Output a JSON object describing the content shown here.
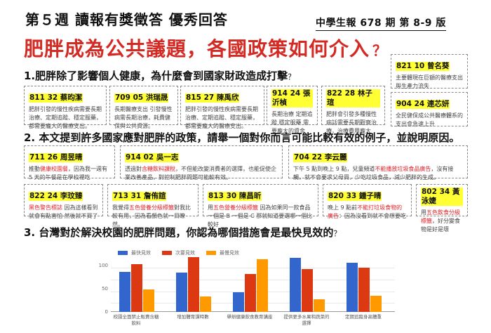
{
  "header": {
    "week_title": "第５週  讀報有獎徵答  優秀回答",
    "issue_info": "中學生報 678 期  第 8-9 版",
    "main_title": "肥胖成為公共議題，各國政策如何介入",
    "main_title_mark": "？"
  },
  "questions": {
    "q1": "1.肥胖除了影響個人健康，為什麼會到國家財政造成打擊",
    "q2": "2. 本文提到許多國家應對肥胖的政策，請舉一個對你而言可能比較有效的例子，並說明原因。",
    "q3": "3. 台灣對於解決校園的肥胖問題，你認為哪個措施會是最快見效的",
    "mark": "？"
  },
  "section1_answers": [
    {
      "name": "811  32  蔡昀潔",
      "text": "肥胖引發的慢性疾病需要長期治療、定期追蹤、穩定服藥，都需要龐大的醫療支出。"
    },
    {
      "name": "709  05 洪瑞晟",
      "text": "長期醫療支出 引發慢性病需長期治療，耗費健保與公共資源。"
    },
    {
      "name": "815  27 陳禹欣",
      "text": "肥胖引發的慢性疾病需要長期治療、定期追蹤、穩定服藥，都需要龐大的醫療支出。"
    },
    {
      "name": "914  24 張沂楨",
      "text": "長期治療 定期追蹤 穩定服藥 需要龐大的資金"
    },
    {
      "name": "822  28 林子瑄",
      "text": "肥胖會引發多種慢性病話需要長期觀察治療，治療費用龐大"
    },
    {
      "name": "821  10  曾名葵",
      "text": "主要體現在巨額的醫療支出與生產力流失"
    },
    {
      "name": "904  24 連芯妍",
      "text": "全民健保成公共醫療體系的支出會急速上升"
    }
  ],
  "section2_answers": [
    {
      "name": "711  26 周昱晴",
      "pre": "推動",
      "highlight": "健康校園餐",
      "post": "，因為我一週有 5 天的午餐是在學校裡吃"
    },
    {
      "name": "914  02 吳一志",
      "pre": "透過對",
      "highlight": "含糖飲料課稅",
      "post": "，不但能改變消費者的選擇，也能促使企業改善產品，對控制肥胖問題可能較有效。"
    },
    {
      "name": "704  22 李云麗",
      "pre": "下午 5 點到晚上 9 點，兒童頻道",
      "highlight": "不能播放垃圾食品廣告",
      "post": "，沒有接觸，就不會要求父母買，少吃垃圾食品，減少肥胖的生成。"
    },
    {
      "name": "822  24 李玟臻",
      "pre": "",
      "highlight": "黑色警告標誌",
      "post": " 因為這樣看到就會有點害怕 然後就不買了"
    },
    {
      "name": "713  31 詹侑諠",
      "pre": "我覺得",
      "highlight": "五色營養分級標籤",
      "post": "對我比較有用，因為看顏色就一目瞭然。"
    },
    {
      "name": "813  30 陳昌昕",
      "pre": "用",
      "highlight": "五色營養分級標籤",
      "post": " 因為如果同一款食品一個是 B 一個是 C 那就知道要選哪一個比較好"
    },
    {
      "name": "820  33 鍾子晴",
      "pre": "晚上 9 點前",
      "highlight": "不能打垃圾食物的廣告",
      "post": "：因為沒看到就不會想要吃"
    },
    {
      "name": "802  34 黃泳婕",
      "pre": "用",
      "highlight": "五色飲食分級標籤",
      "post": "，好分變食物是好是壞"
    }
  ],
  "chart_data": {
    "type": "bar",
    "title": "",
    "categories": [
      "校園全面禁止販賣含糖飲料",
      "增加體育課時數",
      "舉辦健康飲食教育講座",
      "提供更多水果和蔬菜的選擇",
      "定期追蹤身高體重"
    ],
    "category_lines": [
      [
        "校園全面禁止販賣含糖",
        "飲料"
      ],
      [
        "增加體育課時數"
      ],
      [
        "舉辦健康飲食教育講座"
      ],
      [
        "提供更多水果和蔬菜的",
        "選擇"
      ],
      [
        "定期追蹤身高體重"
      ]
    ],
    "series": [
      {
        "name": "最快見效",
        "color": "#3366cc",
        "values": [
          87,
          85,
          42,
          117,
          107
        ]
      },
      {
        "name": "次要見效",
        "color": "#dc3912",
        "values": [
          103,
          119,
          82,
          93,
          96
        ]
      },
      {
        "name": "最慢見效",
        "color": "#ff9900",
        "values": [
          48,
          34,
          114,
          28,
          35
        ]
      }
    ],
    "yticks": [
      "0",
      "50",
      "100"
    ],
    "ylim": [
      0,
      120
    ],
    "xlabel": "",
    "ylabel": "",
    "grid": true,
    "legend_position": "top"
  }
}
